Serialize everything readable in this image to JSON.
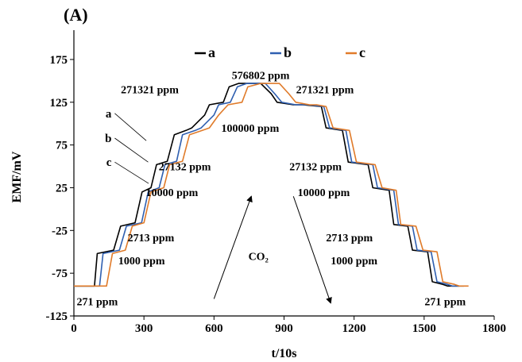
{
  "panel_label": "(A)",
  "chart_data": {
    "type": "line",
    "xlabel": "t/10s",
    "ylabel": "EMF/mV",
    "xlim": [
      0,
      1800
    ],
    "ylim": [
      -125,
      200
    ],
    "xticks": [
      "0",
      "300",
      "600",
      "900",
      "1200",
      "1500",
      "1800"
    ],
    "yticks": [
      "-125",
      "-75",
      "-25",
      "25",
      "75",
      "125",
      "175"
    ],
    "grid": false,
    "legend_placement": "top-center",
    "series": [
      {
        "name": "a",
        "color": "#000000",
        "x": [
          0,
          88,
          100,
          170,
          200,
          262,
          292,
          330,
          354,
          400,
          430,
          480,
          505,
          560,
          580,
          640,
          665,
          705,
          730,
          780,
          800,
          845,
          870,
          940,
          980,
          1060,
          1080,
          1150,
          1175,
          1260,
          1280,
          1350,
          1370,
          1430,
          1450,
          1515,
          1535,
          1580,
          1600,
          1650
        ],
        "y": [
          -90,
          -90,
          -52,
          -48,
          -20,
          -16,
          20,
          25,
          52,
          56,
          87,
          92,
          95,
          110,
          122,
          125,
          143,
          147,
          147,
          147,
          147,
          135,
          125,
          122,
          122,
          120,
          95,
          92,
          55,
          52,
          25,
          22,
          -18,
          -20,
          -48,
          -50,
          -85,
          -88,
          -90,
          -90
        ]
      },
      {
        "name": "b",
        "color": "#2f5fb0",
        "x": [
          0,
          110,
          125,
          195,
          225,
          290,
          318,
          365,
          390,
          440,
          465,
          520,
          545,
          600,
          620,
          670,
          700,
          740,
          770,
          800,
          820,
          860,
          890,
          950,
          1000,
          1070,
          1095,
          1165,
          1190,
          1280,
          1300,
          1370,
          1390,
          1450,
          1470,
          1530,
          1555,
          1600,
          1620,
          1670
        ],
        "y": [
          -90,
          -90,
          -52,
          -48,
          -20,
          -16,
          20,
          25,
          52,
          56,
          87,
          92,
          95,
          110,
          122,
          125,
          143,
          147,
          147,
          147,
          147,
          135,
          125,
          122,
          122,
          120,
          95,
          92,
          55,
          52,
          25,
          22,
          -18,
          -20,
          -48,
          -50,
          -85,
          -88,
          -90,
          -90
        ]
      },
      {
        "name": "c",
        "color": "#e07b2a",
        "x": [
          0,
          140,
          165,
          220,
          250,
          300,
          330,
          385,
          410,
          465,
          495,
          550,
          580,
          620,
          660,
          720,
          745,
          800,
          830,
          860,
          880,
          920,
          950,
          1010,
          1040,
          1080,
          1110,
          1180,
          1210,
          1290,
          1320,
          1380,
          1400,
          1465,
          1495,
          1555,
          1580,
          1630,
          1650,
          1690
        ],
        "y": [
          -90,
          -90,
          -52,
          -48,
          -20,
          -16,
          20,
          25,
          52,
          56,
          87,
          92,
          95,
          110,
          122,
          125,
          143,
          147,
          147,
          147,
          147,
          135,
          125,
          122,
          122,
          120,
          95,
          92,
          55,
          52,
          25,
          22,
          -18,
          -20,
          -48,
          -50,
          -85,
          -88,
          -90,
          -90
        ]
      }
    ],
    "annotations": [
      {
        "text": "576802 ppm",
        "x": 800,
        "y": 157
      },
      {
        "text": "271321 ppm",
        "x": 325,
        "y": 140
      },
      {
        "text": "271321 ppm",
        "x": 1075,
        "y": 140
      },
      {
        "text": "100000 ppm",
        "x": 755,
        "y": 95
      },
      {
        "text": "27132 ppm",
        "x": 475,
        "y": 50
      },
      {
        "text": "27132 ppm",
        "x": 1035,
        "y": 50
      },
      {
        "text": "10000 ppm",
        "x": 420,
        "y": 20
      },
      {
        "text": "10000 ppm",
        "x": 1070,
        "y": 20
      },
      {
        "text": "2713 ppm",
        "x": 330,
        "y": -33
      },
      {
        "text": "2713 ppm",
        "x": 1180,
        "y": -33
      },
      {
        "text": "1000 ppm",
        "x": 290,
        "y": -60
      },
      {
        "text": "1000 ppm",
        "x": 1200,
        "y": -60
      },
      {
        "text": "271 ppm",
        "x": 100,
        "y": -108
      },
      {
        "text": "271 ppm",
        "x": 1590,
        "y": -108
      },
      {
        "text": "CO₂",
        "x": 790,
        "y": -55
      }
    ],
    "curve_labels": [
      {
        "text": "a",
        "x": 175,
        "y": 112,
        "to_x": 310,
        "to_y": 80
      },
      {
        "text": "b",
        "x": 175,
        "y": 83,
        "to_x": 318,
        "to_y": 55
      },
      {
        "text": "c",
        "x": 175,
        "y": 55,
        "to_x": 320,
        "to_y": 30
      }
    ],
    "arrows": [
      {
        "from_x": 600,
        "from_y": -105,
        "to_x": 760,
        "to_y": 15
      },
      {
        "from_x": 940,
        "from_y": 15,
        "to_x": 1100,
        "to_y": -110
      }
    ]
  }
}
